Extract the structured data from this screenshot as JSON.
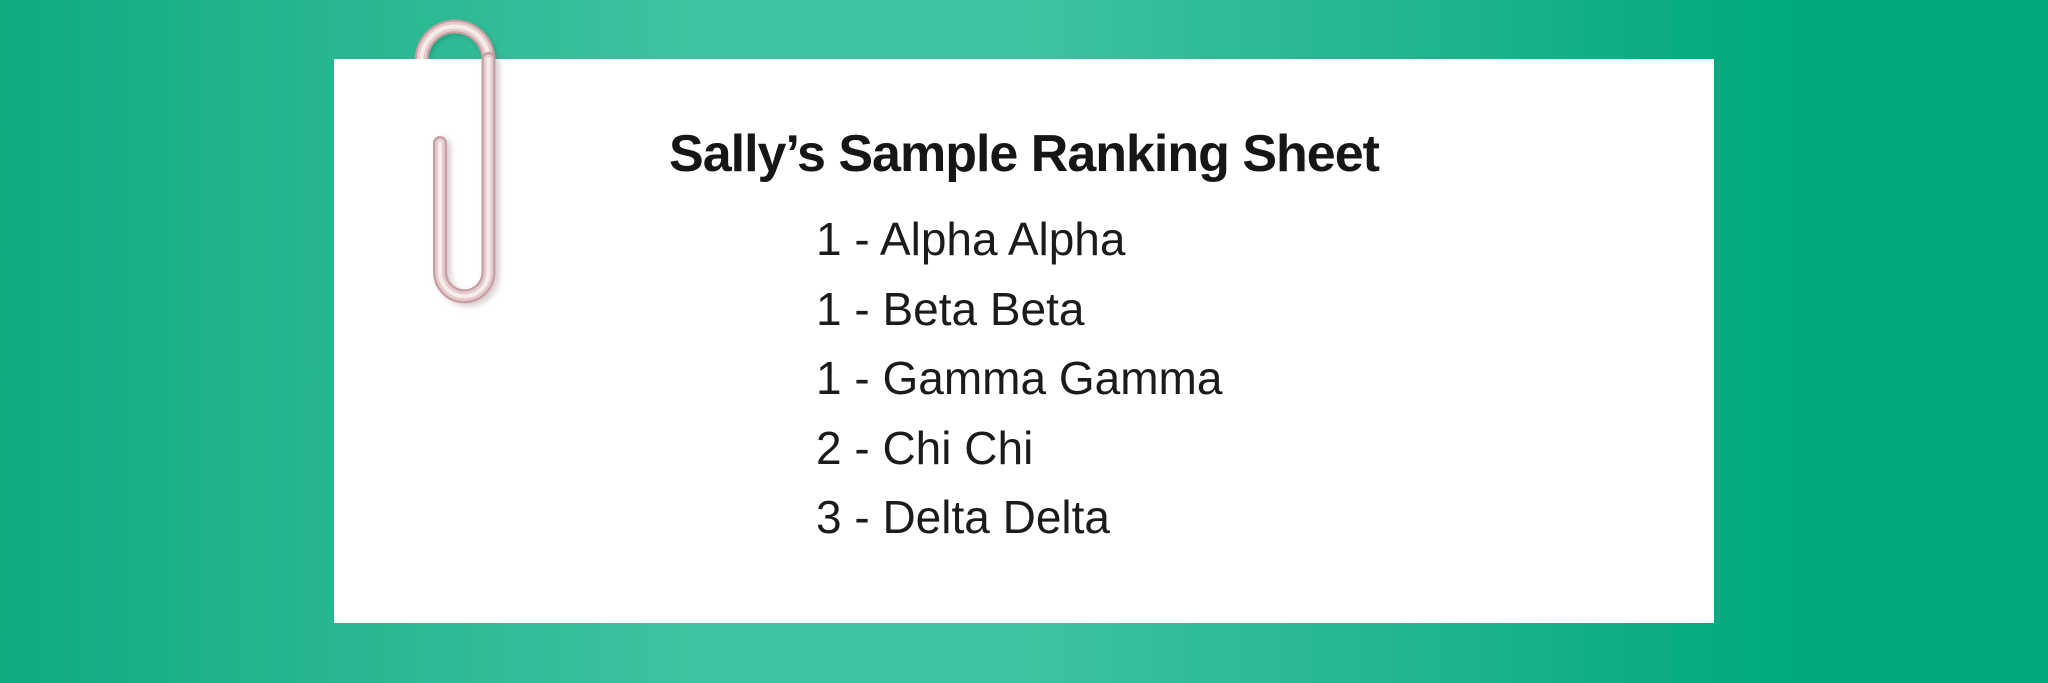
{
  "background": {
    "gradient_left": "#0fab81",
    "gradient_mid": "#3fc2a1",
    "gradient_right": "#00a87d"
  },
  "card": {
    "color": "#ffffff"
  },
  "sheet": {
    "title": "Sally’s Sample Ranking Sheet",
    "entries": [
      {
        "rank": "1",
        "name": "Alpha Alpha",
        "text": "1 - Alpha Alpha"
      },
      {
        "rank": "1",
        "name": "Beta Beta",
        "text": "1 - Beta Beta"
      },
      {
        "rank": "1",
        "name": "Gamma Gamma",
        "text": "1 - Gamma Gamma"
      },
      {
        "rank": "2",
        "name": "Chi Chi",
        "text": "2 - Chi Chi"
      },
      {
        "rank": "3",
        "name": "Delta Delta",
        "text": "3 - Delta Delta"
      }
    ]
  },
  "decorations": {
    "paperclip": {
      "edge_color": "#c79fa1",
      "mid_color": "#e5cbcb",
      "highlight_color": "#f6ecea"
    }
  }
}
